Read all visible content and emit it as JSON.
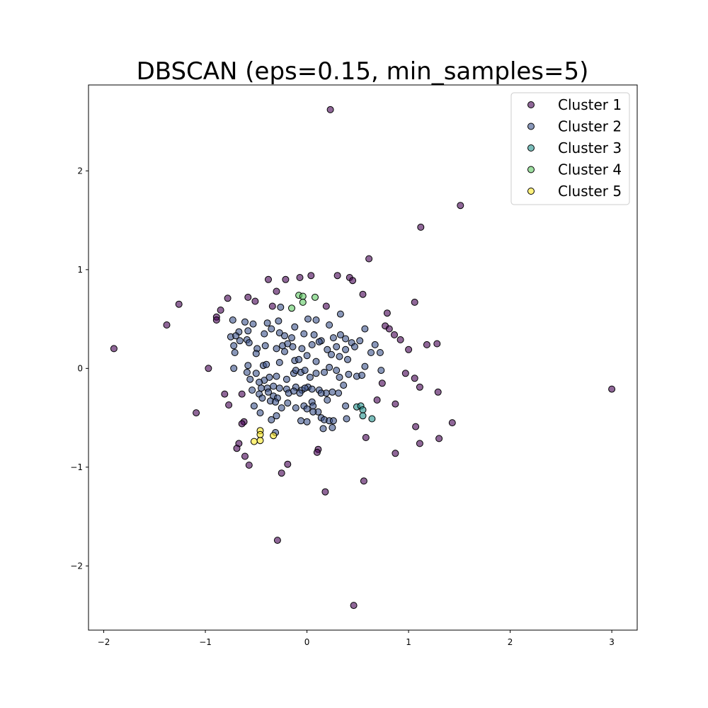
{
  "chart_data": {
    "type": "scatter",
    "title": "DBSCAN (eps=0.15, min_samples=5)",
    "xlabel": "",
    "ylabel": "",
    "xlim": [
      -2.15,
      3.25
    ],
    "ylim": [
      -2.65,
      2.87
    ],
    "xticks": [
      -2,
      -1,
      0,
      1,
      2,
      3
    ],
    "yticks": [
      -2,
      -1,
      0,
      1,
      2
    ],
    "xtick_labels": [
      "−2",
      "−1",
      "0",
      "1",
      "2",
      "3"
    ],
    "ytick_labels": [
      "−2",
      "−1",
      "0",
      "1",
      "2"
    ],
    "grid": false,
    "legend_position": "top-right",
    "series": [
      {
        "name": "Cluster 1",
        "color": "#440154",
        "points": [
          [
            0.23,
            2.62
          ],
          [
            1.51,
            1.65
          ],
          [
            1.12,
            1.43
          ],
          [
            0.61,
            1.11
          ],
          [
            -0.38,
            0.9
          ],
          [
            -0.21,
            0.9
          ],
          [
            -0.07,
            0.92
          ],
          [
            0.04,
            0.94
          ],
          [
            0.3,
            0.94
          ],
          [
            0.42,
            0.92
          ],
          [
            0.45,
            0.89
          ],
          [
            -0.3,
            0.78
          ],
          [
            0.55,
            0.75
          ],
          [
            -0.78,
            0.71
          ],
          [
            -0.58,
            0.72
          ],
          [
            -0.51,
            0.68
          ],
          [
            -0.34,
            0.63
          ],
          [
            0.19,
            0.63
          ],
          [
            -1.26,
            0.65
          ],
          [
            -0.85,
            0.59
          ],
          [
            1.06,
            0.67
          ],
          [
            0.79,
            0.56
          ],
          [
            -0.89,
            0.52
          ],
          [
            -0.89,
            0.49
          ],
          [
            -1.38,
            0.44
          ],
          [
            0.77,
            0.43
          ],
          [
            0.81,
            0.4
          ],
          [
            0.86,
            0.34
          ],
          [
            0.92,
            0.29
          ],
          [
            1.18,
            0.24
          ],
          [
            1.28,
            0.25
          ],
          [
            -1.9,
            0.2
          ],
          [
            1.0,
            0.19
          ],
          [
            -0.97,
            0.0
          ],
          [
            0.97,
            -0.05
          ],
          [
            1.06,
            -0.1
          ],
          [
            1.11,
            -0.19
          ],
          [
            1.29,
            -0.24
          ],
          [
            0.74,
            -0.15
          ],
          [
            -0.81,
            -0.26
          ],
          [
            -0.64,
            -0.26
          ],
          [
            0.69,
            -0.32
          ],
          [
            -0.77,
            -0.37
          ],
          [
            0.87,
            -0.36
          ],
          [
            -1.09,
            -0.45
          ],
          [
            1.43,
            -0.55
          ],
          [
            -0.62,
            -0.54
          ],
          [
            -0.64,
            -0.56
          ],
          [
            1.07,
            -0.59
          ],
          [
            0.58,
            -0.7
          ],
          [
            1.3,
            -0.71
          ],
          [
            -0.67,
            -0.76
          ],
          [
            1.11,
            -0.76
          ],
          [
            -0.69,
            -0.81
          ],
          [
            0.11,
            -0.82
          ],
          [
            0.1,
            -0.85
          ],
          [
            0.87,
            -0.86
          ],
          [
            -0.61,
            -0.89
          ],
          [
            -0.57,
            -0.98
          ],
          [
            -0.19,
            -0.97
          ],
          [
            -0.25,
            -1.06
          ],
          [
            0.56,
            -1.14
          ],
          [
            0.18,
            -1.25
          ],
          [
            -0.29,
            -1.74
          ],
          [
            0.46,
            -2.4
          ],
          [
            3.0,
            -0.21
          ]
        ]
      },
      {
        "name": "Cluster 2",
        "color": "#3b528b",
        "points": [
          [
            -0.73,
            0.49
          ],
          [
            -0.61,
            0.47
          ],
          [
            -0.53,
            0.45
          ],
          [
            -0.39,
            0.46
          ],
          [
            -0.28,
            0.48
          ],
          [
            -0.12,
            0.42
          ],
          [
            0.09,
            0.49
          ],
          [
            0.22,
            0.44
          ],
          [
            0.33,
            0.55
          ],
          [
            -0.26,
            0.62
          ],
          [
            0.57,
            0.4
          ],
          [
            0.01,
            0.5
          ],
          [
            -0.67,
            0.37
          ],
          [
            -0.58,
            0.38
          ],
          [
            -0.42,
            0.35
          ],
          [
            -0.35,
            0.4
          ],
          [
            -0.27,
            0.36
          ],
          [
            -0.22,
            0.33
          ],
          [
            -0.15,
            0.31
          ],
          [
            -0.03,
            0.35
          ],
          [
            0.07,
            0.34
          ],
          [
            0.14,
            0.28
          ],
          [
            0.26,
            0.31
          ],
          [
            0.33,
            0.34
          ],
          [
            0.38,
            0.3
          ],
          [
            0.44,
            0.26
          ],
          [
            0.52,
            0.28
          ],
          [
            -0.75,
            0.32
          ],
          [
            -0.7,
            0.33
          ],
          [
            -0.66,
            0.28
          ],
          [
            -0.59,
            0.29
          ],
          [
            -0.57,
            0.26
          ],
          [
            -0.49,
            0.2
          ],
          [
            -0.41,
            0.23
          ],
          [
            -0.3,
            0.2
          ],
          [
            -0.24,
            0.23
          ],
          [
            -0.19,
            0.25
          ],
          [
            -0.14,
            0.22
          ],
          [
            -0.05,
            0.2
          ],
          [
            0.05,
            0.24
          ],
          [
            0.12,
            0.27
          ],
          [
            0.2,
            0.19
          ],
          [
            0.29,
            0.22
          ],
          [
            0.38,
            0.19
          ],
          [
            0.47,
            0.22
          ],
          [
            0.67,
            0.24
          ],
          [
            0.72,
            0.16
          ],
          [
            -0.72,
            0.23
          ],
          [
            -0.71,
            0.16
          ],
          [
            -0.5,
            0.15
          ],
          [
            -0.43,
            0.03
          ],
          [
            -0.4,
            0.04
          ],
          [
            -0.22,
            0.17
          ],
          [
            -0.27,
            0.06
          ],
          [
            -0.12,
            0.08
          ],
          [
            -0.08,
            0.09
          ],
          [
            0.0,
            0.13
          ],
          [
            0.09,
            0.07
          ],
          [
            0.24,
            0.14
          ],
          [
            0.32,
            0.12
          ],
          [
            0.4,
            0.09
          ],
          [
            0.63,
            0.16
          ],
          [
            0.57,
            0.02
          ],
          [
            -0.72,
            0.0
          ],
          [
            -0.58,
            0.03
          ],
          [
            -0.59,
            -0.04
          ],
          [
            -0.5,
            -0.05
          ],
          [
            -0.42,
            -0.12
          ],
          [
            -0.37,
            -0.09
          ],
          [
            -0.3,
            -0.08
          ],
          [
            -0.2,
            -0.11
          ],
          [
            -0.13,
            -0.05
          ],
          [
            -0.11,
            -0.02
          ],
          [
            -0.06,
            -0.04
          ],
          [
            -0.02,
            -0.02
          ],
          [
            0.03,
            -0.09
          ],
          [
            0.09,
            -0.05
          ],
          [
            0.17,
            -0.04
          ],
          [
            0.22,
            0.01
          ],
          [
            0.29,
            -0.02
          ],
          [
            0.32,
            -0.09
          ],
          [
            0.41,
            -0.06
          ],
          [
            0.49,
            -0.08
          ],
          [
            0.54,
            -0.07
          ],
          [
            0.73,
            -0.02
          ],
          [
            -0.56,
            -0.11
          ],
          [
            -0.47,
            -0.14
          ],
          [
            -0.45,
            -0.2
          ],
          [
            -0.39,
            -0.2
          ],
          [
            -0.33,
            -0.18
          ],
          [
            -0.27,
            -0.2
          ],
          [
            -0.2,
            -0.21
          ],
          [
            -0.11,
            -0.19
          ],
          [
            -0.05,
            -0.22
          ],
          [
            0.01,
            -0.19
          ],
          [
            0.05,
            -0.21
          ],
          [
            0.12,
            -0.22
          ],
          [
            0.19,
            -0.25
          ],
          [
            0.25,
            -0.24
          ],
          [
            0.36,
            -0.17
          ],
          [
            0.31,
            -0.25
          ],
          [
            -0.54,
            -0.22
          ],
          [
            -0.47,
            -0.26
          ],
          [
            -0.38,
            -0.24
          ],
          [
            -0.33,
            -0.28
          ],
          [
            -0.29,
            -0.3
          ],
          [
            -0.18,
            -0.25
          ],
          [
            -0.13,
            -0.23
          ],
          [
            -0.07,
            -0.25
          ],
          [
            -0.02,
            -0.2
          ],
          [
            0.05,
            -0.34
          ],
          [
            0.14,
            -0.25
          ],
          [
            0.2,
            -0.32
          ],
          [
            0.38,
            -0.38
          ],
          [
            -0.52,
            -0.38
          ],
          [
            -0.44,
            -0.3
          ],
          [
            -0.36,
            -0.33
          ],
          [
            -0.31,
            -0.34
          ],
          [
            -0.25,
            -0.4
          ],
          [
            -0.19,
            -0.35
          ],
          [
            -0.11,
            -0.4
          ],
          [
            -0.03,
            -0.38
          ],
          [
            0.0,
            -0.41
          ],
          [
            0.06,
            -0.38
          ],
          [
            0.11,
            -0.44
          ],
          [
            0.06,
            -0.44
          ],
          [
            -0.46,
            -0.45
          ],
          [
            -0.35,
            -0.52
          ],
          [
            -0.3,
            -0.48
          ],
          [
            -0.06,
            -0.53
          ],
          [
            0.0,
            -0.54
          ],
          [
            0.14,
            -0.5
          ],
          [
            0.17,
            -0.52
          ],
          [
            0.22,
            -0.53
          ],
          [
            0.26,
            -0.53
          ],
          [
            0.39,
            -0.51
          ],
          [
            -0.31,
            -0.65
          ],
          [
            0.25,
            -0.6
          ],
          [
            0.16,
            -0.61
          ]
        ]
      },
      {
        "name": "Cluster 3",
        "color": "#21918c",
        "points": [
          [
            0.49,
            -0.39
          ],
          [
            0.53,
            -0.38
          ],
          [
            0.55,
            -0.42
          ],
          [
            0.55,
            -0.48
          ],
          [
            0.64,
            -0.51
          ]
        ]
      },
      {
        "name": "Cluster 4",
        "color": "#5ec962",
        "points": [
          [
            -0.08,
            0.74
          ],
          [
            -0.04,
            0.73
          ],
          [
            0.08,
            0.72
          ],
          [
            -0.04,
            0.67
          ],
          [
            -0.15,
            0.61
          ]
        ]
      },
      {
        "name": "Cluster 5",
        "color": "#fde725",
        "points": [
          [
            -0.46,
            -0.63
          ],
          [
            -0.46,
            -0.67
          ],
          [
            -0.46,
            -0.73
          ],
          [
            -0.52,
            -0.74
          ],
          [
            -0.33,
            -0.68
          ]
        ]
      }
    ]
  }
}
